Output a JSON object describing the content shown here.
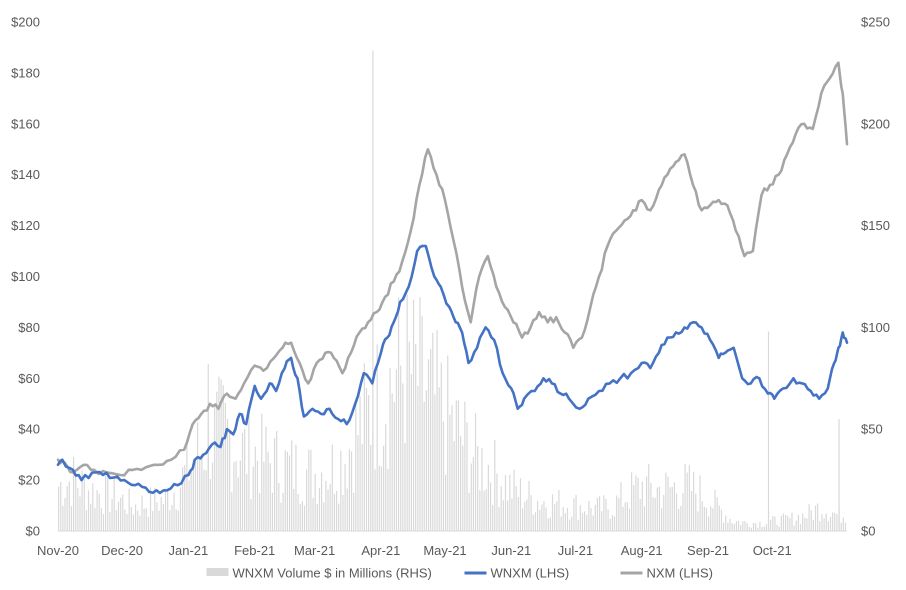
{
  "chart_data": {
    "type": "line",
    "title": "",
    "xlabel": "",
    "ylabel_left": "",
    "ylabel_right": "",
    "x_tick_labels": [
      "Nov-20",
      "Dec-20",
      "Jan-21",
      "Feb-21",
      "Mar-21",
      "Apr-21",
      "May-21",
      "Jun-21",
      "Jul-21",
      "Aug-21",
      "Sep-21",
      "Oct-21"
    ],
    "x_range": [
      "2020-11-01",
      "2021-11-05"
    ],
    "y_left": {
      "min": 0,
      "max": 200,
      "step": 20,
      "tick_labels": [
        "$0",
        "$20",
        "$40",
        "$60",
        "$80",
        "$100",
        "$120",
        "$140",
        "$160",
        "$180",
        "$200"
      ]
    },
    "y_right": {
      "min": 0,
      "max": 250,
      "step": 50,
      "tick_labels": [
        "$0",
        "$50",
        "$100",
        "$150",
        "$200",
        "$250"
      ]
    },
    "grid": false,
    "legend_position": "bottom",
    "series": [
      {
        "name": "WNXM Volume $ in Millions (RHS)",
        "type": "bar",
        "axis": "right",
        "color": "#d9d9d9",
        "points": [
          [
            "2020-11-01",
            22
          ],
          [
            "2020-11-08",
            25
          ],
          [
            "2020-11-15",
            20
          ],
          [
            "2020-11-22",
            18
          ],
          [
            "2020-11-29",
            16
          ],
          [
            "2020-12-06",
            12
          ],
          [
            "2020-12-13",
            14
          ],
          [
            "2020-12-20",
            15
          ],
          [
            "2020-12-27",
            22
          ],
          [
            "2021-01-03",
            35
          ],
          [
            "2021-01-10",
            45
          ],
          [
            "2021-01-17",
            50
          ],
          [
            "2021-01-24",
            40
          ],
          [
            "2021-01-31",
            38
          ],
          [
            "2021-02-07",
            35
          ],
          [
            "2021-02-14",
            32
          ],
          [
            "2021-02-21",
            30
          ],
          [
            "2021-02-28",
            28
          ],
          [
            "2021-03-07",
            30
          ],
          [
            "2021-03-14",
            35
          ],
          [
            "2021-03-21",
            50
          ],
          [
            "2021-03-28",
            60
          ],
          [
            "2021-04-04",
            70
          ],
          [
            "2021-04-11",
            80
          ],
          [
            "2021-04-18",
            75
          ],
          [
            "2021-04-25",
            65
          ],
          [
            "2021-05-02",
            55
          ],
          [
            "2021-05-09",
            45
          ],
          [
            "2021-05-16",
            35
          ],
          [
            "2021-05-23",
            30
          ],
          [
            "2021-05-30",
            22
          ],
          [
            "2021-06-06",
            18
          ],
          [
            "2021-06-13",
            15
          ],
          [
            "2021-06-20",
            14
          ],
          [
            "2021-06-27",
            13
          ],
          [
            "2021-07-04",
            12
          ],
          [
            "2021-07-11",
            11
          ],
          [
            "2021-07-18",
            12
          ],
          [
            "2021-07-25",
            18
          ],
          [
            "2021-08-01",
            22
          ],
          [
            "2021-08-08",
            20
          ],
          [
            "2021-08-15",
            21
          ],
          [
            "2021-08-22",
            22
          ],
          [
            "2021-08-29",
            18
          ],
          [
            "2021-09-05",
            12
          ],
          [
            "2021-09-12",
            5
          ],
          [
            "2021-09-19",
            4
          ],
          [
            "2021-09-26",
            4
          ],
          [
            "2021-10-03",
            5
          ],
          [
            "2021-10-10",
            6
          ],
          [
            "2021-10-17",
            8
          ],
          [
            "2021-10-24",
            12
          ],
          [
            "2021-10-31",
            8
          ]
        ],
        "spikes": [
          [
            "2021-03-28",
            236
          ],
          [
            "2021-09-29",
            98
          ],
          [
            "2021-11-01",
            55
          ],
          [
            "2021-01-10",
            82
          ]
        ]
      },
      {
        "name": "WNXM (LHS)",
        "type": "line",
        "axis": "left",
        "color": "#4472c4",
        "points": [
          [
            "2020-11-01",
            26
          ],
          [
            "2020-11-03",
            28
          ],
          [
            "2020-11-08",
            24
          ],
          [
            "2020-11-12",
            20
          ],
          [
            "2020-11-17",
            23
          ],
          [
            "2020-11-22",
            22
          ],
          [
            "2020-11-27",
            21
          ],
          [
            "2020-12-02",
            20
          ],
          [
            "2020-12-07",
            18
          ],
          [
            "2020-12-12",
            17
          ],
          [
            "2020-12-17",
            16
          ],
          [
            "2020-12-22",
            16
          ],
          [
            "2020-12-27",
            18
          ],
          [
            "2021-01-01",
            22
          ],
          [
            "2021-01-04",
            28
          ],
          [
            "2021-01-08",
            30
          ],
          [
            "2021-01-12",
            34
          ],
          [
            "2021-01-16",
            33
          ],
          [
            "2021-01-19",
            40
          ],
          [
            "2021-01-22",
            38
          ],
          [
            "2021-01-25",
            46
          ],
          [
            "2021-01-28",
            42
          ],
          [
            "2021-02-01",
            57
          ],
          [
            "2021-02-04",
            52
          ],
          [
            "2021-02-08",
            58
          ],
          [
            "2021-02-11",
            55
          ],
          [
            "2021-02-15",
            64
          ],
          [
            "2021-02-18",
            68
          ],
          [
            "2021-02-21",
            60
          ],
          [
            "2021-02-24",
            45
          ],
          [
            "2021-02-28",
            48
          ],
          [
            "2021-03-04",
            46
          ],
          [
            "2021-03-08",
            48
          ],
          [
            "2021-03-12",
            44
          ],
          [
            "2021-03-16",
            42
          ],
          [
            "2021-03-20",
            50
          ],
          [
            "2021-03-24",
            62
          ],
          [
            "2021-03-28",
            58
          ],
          [
            "2021-04-01",
            70
          ],
          [
            "2021-04-04",
            76
          ],
          [
            "2021-04-07",
            82
          ],
          [
            "2021-04-10",
            90
          ],
          [
            "2021-04-14",
            96
          ],
          [
            "2021-04-18",
            110
          ],
          [
            "2021-04-22",
            112
          ],
          [
            "2021-04-26",
            100
          ],
          [
            "2021-04-29",
            96
          ],
          [
            "2021-05-03",
            88
          ],
          [
            "2021-05-06",
            82
          ],
          [
            "2021-05-09",
            78
          ],
          [
            "2021-05-12",
            66
          ],
          [
            "2021-05-16",
            72
          ],
          [
            "2021-05-20",
            80
          ],
          [
            "2021-05-24",
            75
          ],
          [
            "2021-05-28",
            62
          ],
          [
            "2021-06-01",
            56
          ],
          [
            "2021-06-04",
            48
          ],
          [
            "2021-06-07",
            52
          ],
          [
            "2021-06-12",
            55
          ],
          [
            "2021-06-16",
            60
          ],
          [
            "2021-06-20",
            58
          ],
          [
            "2021-06-24",
            54
          ],
          [
            "2021-06-28",
            52
          ],
          [
            "2021-07-03",
            48
          ],
          [
            "2021-07-07",
            52
          ],
          [
            "2021-07-12",
            55
          ],
          [
            "2021-07-17",
            58
          ],
          [
            "2021-07-22",
            60
          ],
          [
            "2021-07-27",
            62
          ],
          [
            "2021-08-01",
            66
          ],
          [
            "2021-08-05",
            64
          ],
          [
            "2021-08-09",
            70
          ],
          [
            "2021-08-13",
            76
          ],
          [
            "2021-08-17",
            78
          ],
          [
            "2021-08-21",
            80
          ],
          [
            "2021-08-25",
            82
          ],
          [
            "2021-08-29",
            80
          ],
          [
            "2021-09-02",
            75
          ],
          [
            "2021-09-06",
            68
          ],
          [
            "2021-09-09",
            70
          ],
          [
            "2021-09-13",
            72
          ],
          [
            "2021-09-17",
            60
          ],
          [
            "2021-09-21",
            58
          ],
          [
            "2021-09-25",
            60
          ],
          [
            "2021-09-29",
            54
          ],
          [
            "2021-10-02",
            52
          ],
          [
            "2021-10-06",
            56
          ],
          [
            "2021-10-11",
            60
          ],
          [
            "2021-10-15",
            58
          ],
          [
            "2021-10-19",
            55
          ],
          [
            "2021-10-23",
            52
          ],
          [
            "2021-10-27",
            56
          ],
          [
            "2021-10-30",
            66
          ],
          [
            "2021-11-01",
            72
          ],
          [
            "2021-11-03",
            78
          ],
          [
            "2021-11-05",
            74
          ]
        ]
      },
      {
        "name": "NXM (LHS)",
        "type": "line",
        "axis": "left",
        "color": "#a5a5a5",
        "points": [
          [
            "2020-11-01",
            28
          ],
          [
            "2020-11-04",
            27
          ],
          [
            "2020-11-08",
            23
          ],
          [
            "2020-11-13",
            26
          ],
          [
            "2020-11-18",
            24
          ],
          [
            "2020-11-24",
            23
          ],
          [
            "2020-11-30",
            22
          ],
          [
            "2020-12-06",
            24
          ],
          [
            "2020-12-12",
            25
          ],
          [
            "2020-12-18",
            26
          ],
          [
            "2020-12-24",
            28
          ],
          [
            "2020-12-30",
            32
          ],
          [
            "2021-01-03",
            42
          ],
          [
            "2021-01-07",
            46
          ],
          [
            "2021-01-11",
            50
          ],
          [
            "2021-01-15",
            48
          ],
          [
            "2021-01-19",
            54
          ],
          [
            "2021-01-23",
            52
          ],
          [
            "2021-01-27",
            58
          ],
          [
            "2021-02-01",
            65
          ],
          [
            "2021-02-05",
            63
          ],
          [
            "2021-02-10",
            68
          ],
          [
            "2021-02-14",
            72
          ],
          [
            "2021-02-18",
            74
          ],
          [
            "2021-02-22",
            66
          ],
          [
            "2021-02-26",
            58
          ],
          [
            "2021-03-02",
            66
          ],
          [
            "2021-03-06",
            70
          ],
          [
            "2021-03-10",
            68
          ],
          [
            "2021-03-14",
            62
          ],
          [
            "2021-03-18",
            70
          ],
          [
            "2021-03-22",
            78
          ],
          [
            "2021-03-26",
            82
          ],
          [
            "2021-03-30",
            86
          ],
          [
            "2021-04-03",
            92
          ],
          [
            "2021-04-07",
            98
          ],
          [
            "2021-04-11",
            106
          ],
          [
            "2021-04-15",
            118
          ],
          [
            "2021-04-19",
            136
          ],
          [
            "2021-04-23",
            150
          ],
          [
            "2021-04-27",
            140
          ],
          [
            "2021-05-01",
            130
          ],
          [
            "2021-05-05",
            114
          ],
          [
            "2021-05-09",
            96
          ],
          [
            "2021-05-13",
            82
          ],
          [
            "2021-05-17",
            100
          ],
          [
            "2021-05-21",
            108
          ],
          [
            "2021-05-25",
            96
          ],
          [
            "2021-05-29",
            88
          ],
          [
            "2021-06-02",
            82
          ],
          [
            "2021-06-06",
            76
          ],
          [
            "2021-06-10",
            80
          ],
          [
            "2021-06-14",
            86
          ],
          [
            "2021-06-18",
            82
          ],
          [
            "2021-06-22",
            84
          ],
          [
            "2021-06-26",
            78
          ],
          [
            "2021-06-30",
            72
          ],
          [
            "2021-07-04",
            76
          ],
          [
            "2021-07-08",
            88
          ],
          [
            "2021-07-12",
            100
          ],
          [
            "2021-07-16",
            112
          ],
          [
            "2021-07-20",
            118
          ],
          [
            "2021-07-24",
            122
          ],
          [
            "2021-07-28",
            126
          ],
          [
            "2021-08-01",
            130
          ],
          [
            "2021-08-05",
            126
          ],
          [
            "2021-08-09",
            134
          ],
          [
            "2021-08-13",
            140
          ],
          [
            "2021-08-17",
            145
          ],
          [
            "2021-08-21",
            148
          ],
          [
            "2021-08-25",
            136
          ],
          [
            "2021-08-29",
            126
          ],
          [
            "2021-09-02",
            128
          ],
          [
            "2021-09-06",
            130
          ],
          [
            "2021-09-10",
            128
          ],
          [
            "2021-09-14",
            118
          ],
          [
            "2021-09-18",
            108
          ],
          [
            "2021-09-22",
            110
          ],
          [
            "2021-09-26",
            132
          ],
          [
            "2021-09-30",
            136
          ],
          [
            "2021-10-04",
            140
          ],
          [
            "2021-10-08",
            148
          ],
          [
            "2021-10-12",
            156
          ],
          [
            "2021-10-16",
            160
          ],
          [
            "2021-10-20",
            158
          ],
          [
            "2021-10-24",
            172
          ],
          [
            "2021-10-28",
            178
          ],
          [
            "2021-11-01",
            184
          ],
          [
            "2021-11-03",
            172
          ],
          [
            "2021-11-05",
            152
          ]
        ]
      }
    ]
  }
}
